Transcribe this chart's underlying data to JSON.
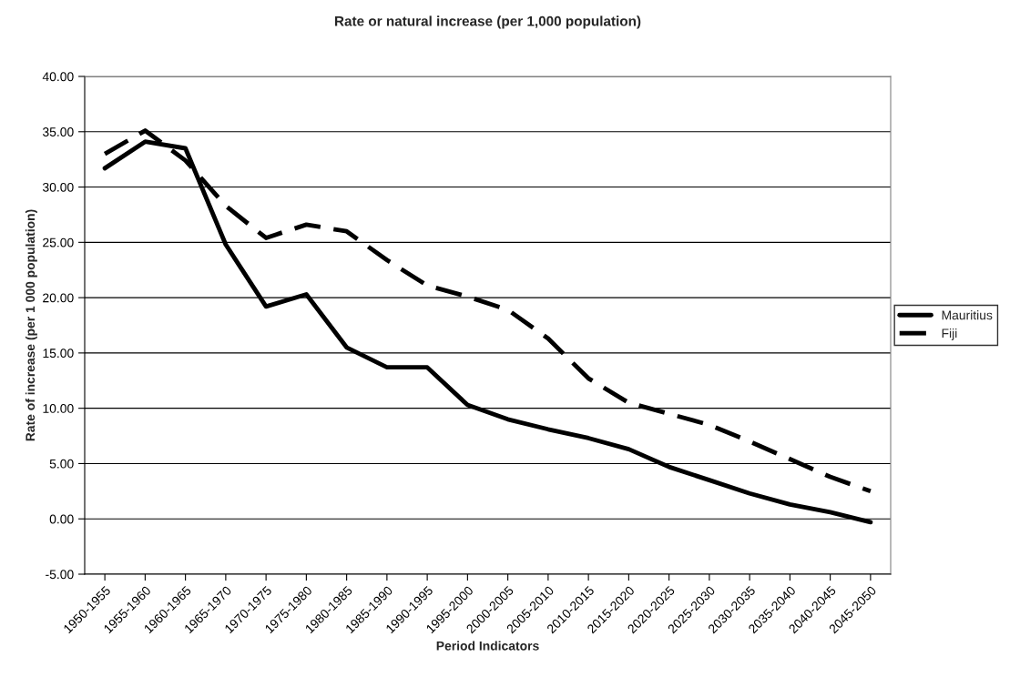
{
  "chart_data": {
    "type": "line",
    "title": "Rate or natural increase (per 1,000 population)",
    "xlabel": "Period Indicators",
    "ylabel": "Rate of increase (per 1 000 population)",
    "categories": [
      "1950-1955",
      "1955-1960",
      "1960-1965",
      "1965-1970",
      "1970-1975",
      "1975-1980",
      "1980-1985",
      "1985-1990",
      "1990-1995",
      "1995-2000",
      "2000-2005",
      "2005-2010",
      "2010-2015",
      "2015-2020",
      "2020-2025",
      "2025-2030",
      "2030-2035",
      "2035-2040",
      "2040-2045",
      "2045-2050"
    ],
    "series": [
      {
        "name": "Mauritius",
        "color": "#000000",
        "line_style": "solid",
        "values": [
          31.7,
          34.1,
          33.5,
          24.8,
          19.2,
          20.3,
          15.5,
          13.7,
          13.7,
          10.3,
          9.0,
          8.1,
          7.3,
          6.3,
          4.7,
          3.5,
          2.3,
          1.3,
          0.6,
          -0.3
        ]
      },
      {
        "name": "Fiji",
        "color": "#000000",
        "line_style": "dashed",
        "values": [
          33.0,
          35.1,
          32.4,
          28.3,
          25.4,
          26.6,
          26.0,
          23.4,
          21.1,
          20.1,
          18.9,
          16.3,
          12.7,
          10.5,
          9.5,
          8.5,
          7.0,
          5.4,
          3.8,
          2.5
        ]
      }
    ],
    "ylim": [
      -5,
      40
    ],
    "yticks": [
      {
        "value": -5,
        "label": "-5.00"
      },
      {
        "value": 0,
        "label": "0.00"
      },
      {
        "value": 5,
        "label": "5.00"
      },
      {
        "value": 10,
        "label": "10.00"
      },
      {
        "value": 15,
        "label": "15.00"
      },
      {
        "value": 20,
        "label": "20.00"
      },
      {
        "value": 25,
        "label": "25.00"
      },
      {
        "value": 30,
        "label": "30.00"
      },
      {
        "value": 35,
        "label": "35.00"
      },
      {
        "value": 40,
        "label": "40.00"
      }
    ],
    "grid": "y",
    "legend": "right",
    "marker": "none"
  }
}
